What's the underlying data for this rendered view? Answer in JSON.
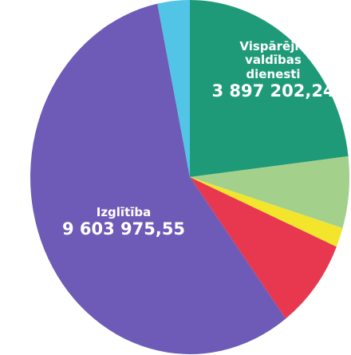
{
  "chart_data": {
    "type": "pie",
    "categories": [
      "Vispārējie valdības dienesti",
      null,
      null,
      null,
      "Izglītība",
      null
    ],
    "values": [
      3897202.24,
      1100000,
      300000,
      1400000,
      9603975.55,
      550000
    ],
    "value_labels": [
      "3 897 202,24",
      null,
      null,
      null,
      "9 603 975,55",
      null
    ],
    "colors": [
      "#1f9a78",
      "#a3d18c",
      "#f3e42c",
      "#e8384f",
      "#6e5bb7",
      "#52c4e6"
    ]
  }
}
